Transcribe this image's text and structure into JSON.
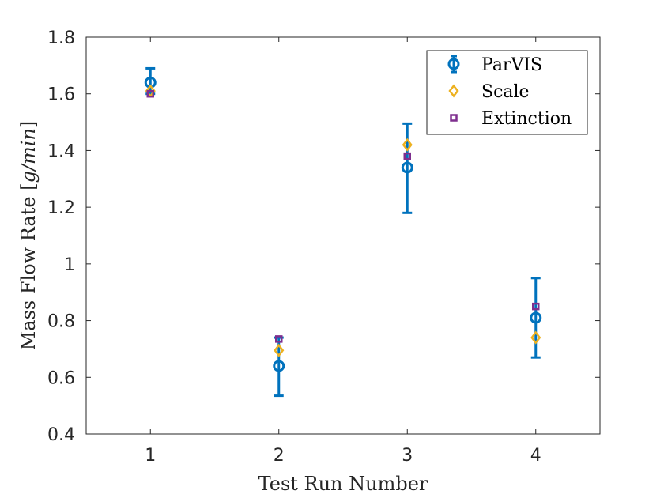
{
  "chart_data": {
    "type": "scatter",
    "xlabel": "Test Run Number",
    "ylabel_text": "Mass Flow Rate [",
    "ylabel_unit": "g/min",
    "ylabel_close": "]",
    "x_ticks": [
      "1",
      "2",
      "3",
      "4"
    ],
    "y_ticks": [
      "0.4",
      "0.6",
      "0.8",
      "1",
      "1.2",
      "1.4",
      "1.6",
      "1.8"
    ],
    "xlim": [
      0.5,
      4.5
    ],
    "ylim": [
      0.4,
      1.8
    ],
    "legend_position": "top-right",
    "series": [
      {
        "name": "ParVIS",
        "marker": "circle",
        "color": "#0072BD",
        "x": [
          1,
          2,
          3,
          4
        ],
        "y": [
          1.64,
          0.64,
          1.34,
          0.81
        ],
        "err_low": [
          1.6,
          0.535,
          1.18,
          0.67
        ],
        "err_high": [
          1.69,
          0.74,
          1.495,
          0.95
        ]
      },
      {
        "name": "Scale",
        "marker": "diamond",
        "color": "#EDB120",
        "x": [
          1,
          2,
          3,
          4
        ],
        "y": [
          1.61,
          0.695,
          1.42,
          0.74
        ]
      },
      {
        "name": "Extinction",
        "marker": "square",
        "color": "#7E2F8E",
        "x": [
          1,
          2,
          3,
          4
        ],
        "y": [
          1.6,
          0.735,
          1.38,
          0.85
        ]
      }
    ]
  }
}
